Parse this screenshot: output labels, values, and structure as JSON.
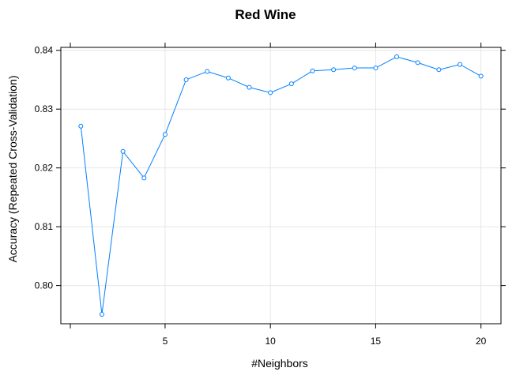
{
  "chart_data": {
    "type": "line",
    "title": "Red Wine",
    "xlabel": "#Neighbors",
    "ylabel": "Accuracy (Repeated Cross-Validation)",
    "xlim": [
      0.05,
      20.95
    ],
    "ylim": [
      0.7935,
      0.8405
    ],
    "x_ticks": [
      5,
      10,
      15,
      20
    ],
    "y_ticks": [
      0.8,
      0.81,
      0.82,
      0.83,
      0.84
    ],
    "y_tick_labels": [
      "0.80",
      "0.81",
      "0.82",
      "0.83",
      "0.84"
    ],
    "x_minor_ticks": [
      0.5
    ],
    "grid": true,
    "series_color": "#0080ff",
    "series": [
      {
        "x": [
          1,
          2,
          3,
          4,
          5,
          6,
          7,
          8,
          9,
          10,
          11,
          12,
          13,
          14,
          15,
          16,
          17,
          18,
          19,
          20
        ],
        "values": [
          0.8271,
          0.7951,
          0.8228,
          0.8183,
          0.8257,
          0.835,
          0.8364,
          0.8353,
          0.8337,
          0.8328,
          0.8343,
          0.8365,
          0.8367,
          0.837,
          0.837,
          0.8389,
          0.8379,
          0.8367,
          0.8376,
          0.8356
        ]
      }
    ]
  }
}
